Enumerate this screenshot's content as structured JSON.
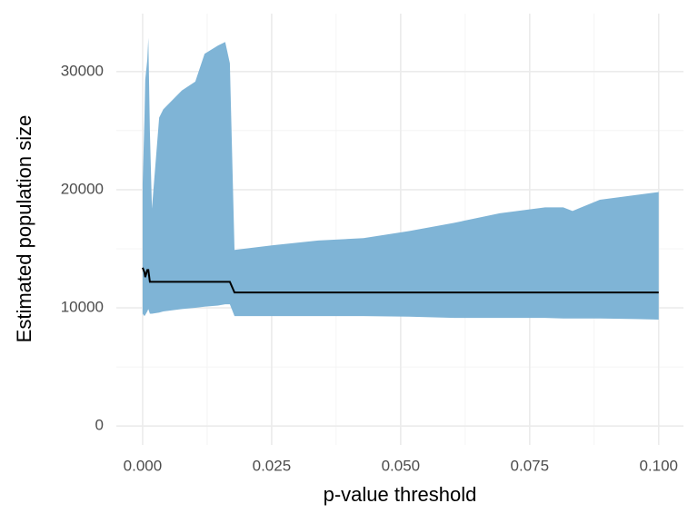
{
  "chart_data": {
    "type": "ribbon-line",
    "x_label": "p-value threshold",
    "y_label": "Estimated population size",
    "x": [
      0,
      0.00035,
      0.0005,
      0.0009,
      0.0011,
      0.0014,
      0.0018,
      0.0032,
      0.004,
      0.0076,
      0.0102,
      0.012,
      0.0146,
      0.016,
      0.0169,
      0.0178,
      0.0252,
      0.034,
      0.0428,
      0.0516,
      0.0604,
      0.0692,
      0.078,
      0.0815,
      0.0833,
      0.0886,
      0.0956,
      0.1
    ],
    "ribbon": {
      "color": "#7fb4d6",
      "upper": [
        20500,
        26000,
        29300,
        31000,
        32850,
        25000,
        18400,
        26100,
        26800,
        28400,
        29150,
        31500,
        32200,
        32500,
        30700,
        14900,
        15300,
        15700,
        15900,
        16500,
        17200,
        18000,
        18500,
        18500,
        18200,
        19150,
        19550,
        19800
      ],
      "lower": [
        9500,
        9300,
        9400,
        9700,
        9900,
        9500,
        9500,
        9600,
        9700,
        9900,
        10000,
        10100,
        10200,
        10300,
        10300,
        9300,
        9300,
        9300,
        9300,
        9250,
        9150,
        9150,
        9150,
        9100,
        9100,
        9100,
        9050,
        9000
      ]
    },
    "line": {
      "color": "#000000",
      "values": [
        13400,
        13000,
        12600,
        13200,
        13200,
        12200,
        12200,
        12200,
        12200,
        12200,
        12200,
        12200,
        12200,
        12200,
        12200,
        11300,
        11300,
        11300,
        11300,
        11300,
        11300,
        11300,
        11300,
        11300,
        11300,
        11300,
        11300,
        11300
      ]
    },
    "xlim": [
      -0.0051,
      0.1048
    ],
    "ylim": [
      -1600,
      34900
    ],
    "xticks": [
      {
        "value": 0,
        "label": "0.000"
      },
      0.025,
      {
        "value": 0.05,
        "label": "0.050"
      },
      0.075,
      {
        "value": 0.1,
        "label": "0.100"
      }
    ],
    "yticks": [
      0,
      10000,
      20000,
      30000
    ],
    "x_minor_ticks": [
      0.0125,
      0.0375,
      0.0625,
      0.0875
    ],
    "y_minor_ticks": [
      5000,
      15000,
      25000
    ],
    "grid": true
  }
}
